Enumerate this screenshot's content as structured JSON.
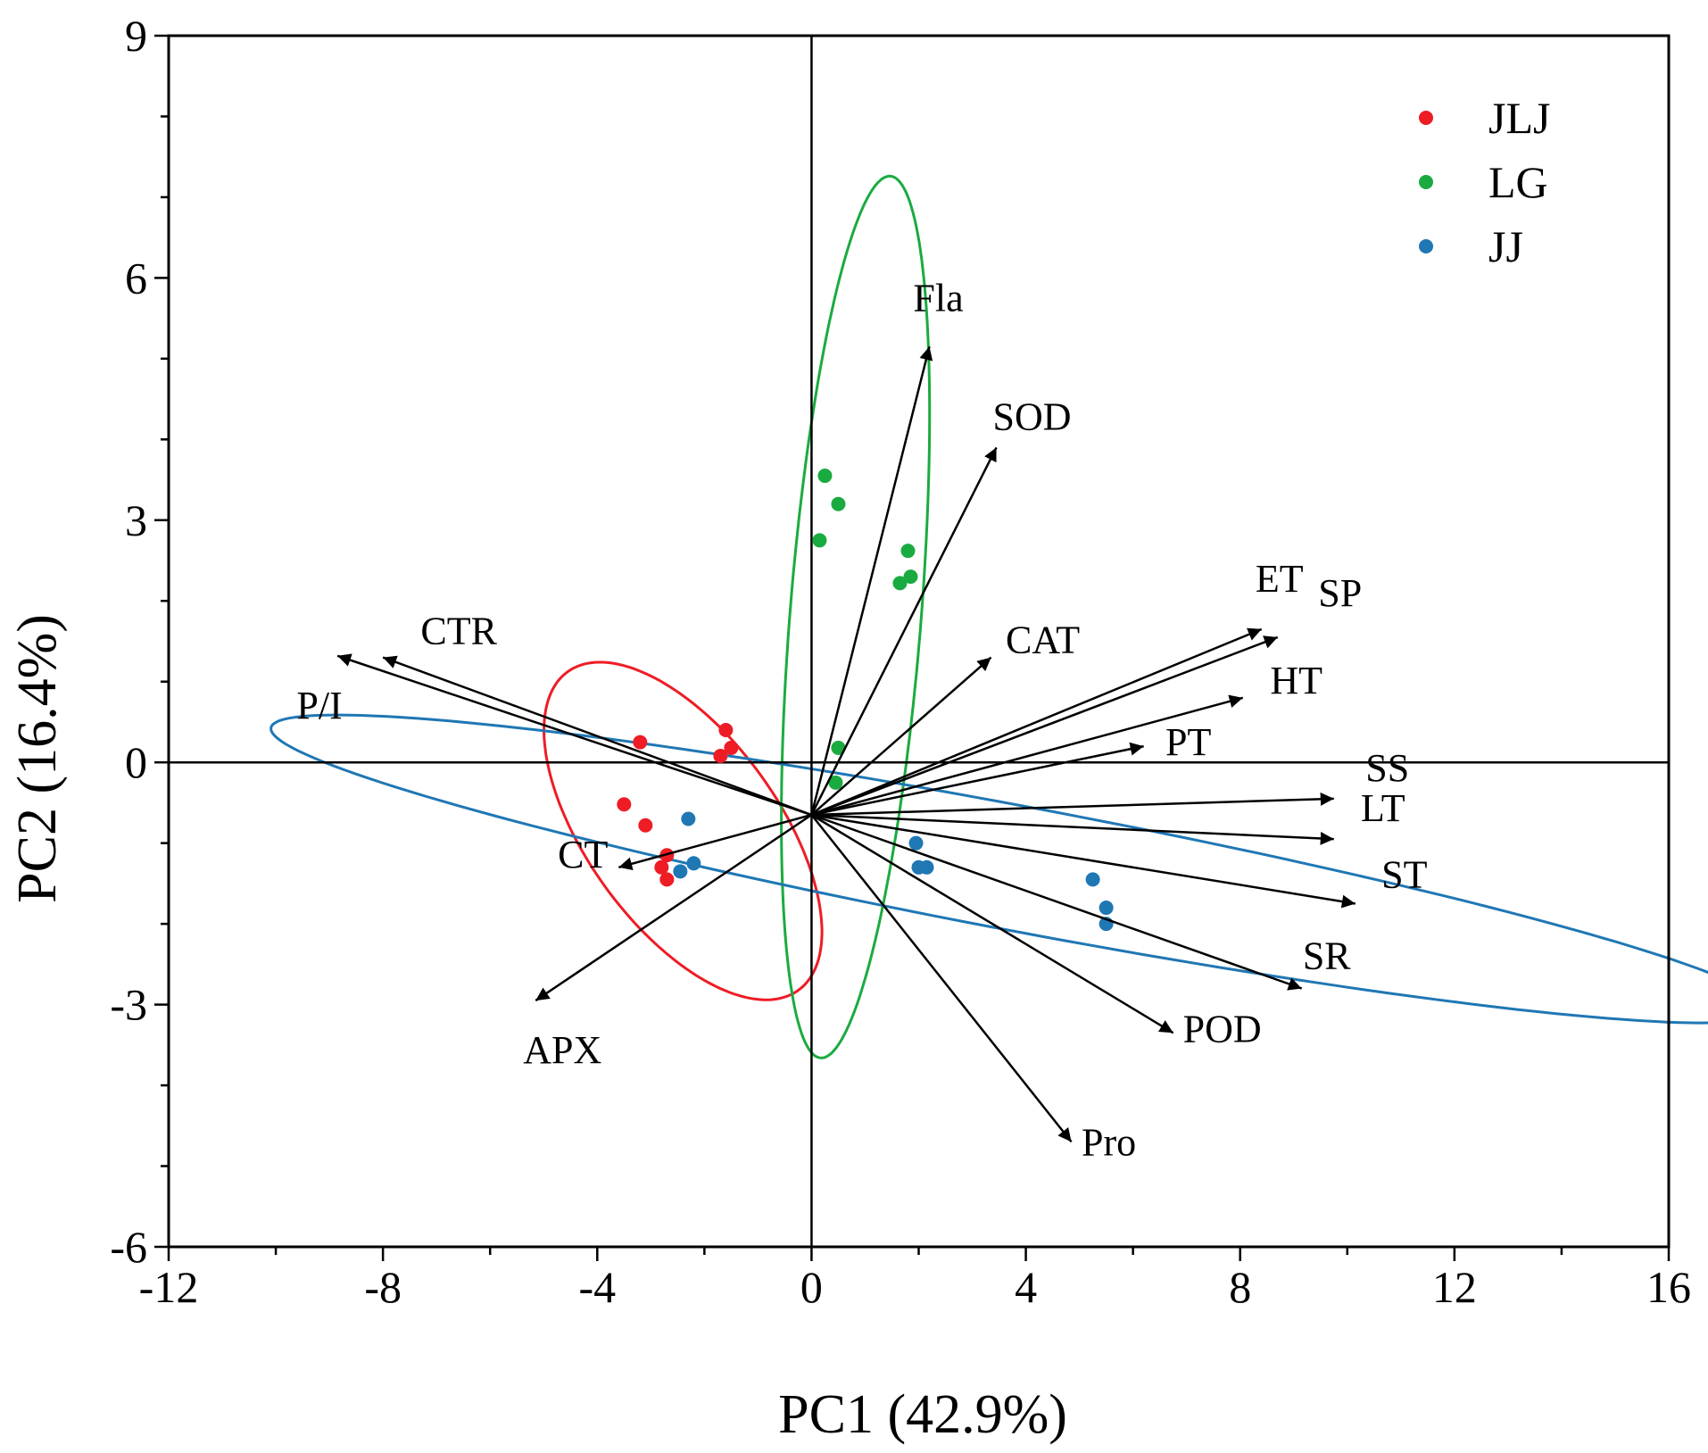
{
  "chart_data": {
    "type": "scatter",
    "title": "",
    "xlabel": "PC1 (42.9%)",
    "ylabel": "PC2 (16.4%)",
    "xlim": [
      -12,
      16
    ],
    "ylim": [
      -6,
      9
    ],
    "xticks": [
      -12,
      -8,
      -4,
      0,
      4,
      8,
      12,
      16
    ],
    "yticks": [
      -6,
      -3,
      0,
      3,
      6,
      9
    ],
    "xtick_labels": [
      "-12",
      "-8",
      "-4",
      "0",
      "4",
      "8",
      "12",
      "16"
    ],
    "ytick_labels": [
      "-6",
      "-3",
      "0",
      "3",
      "6",
      "9"
    ],
    "grid": false,
    "legend_position": "top-right",
    "series": [
      {
        "name": "JLJ",
        "color": "#ee1c25",
        "points": [
          {
            "x": -3.2,
            "y": 0.25
          },
          {
            "x": -1.6,
            "y": 0.4
          },
          {
            "x": -1.5,
            "y": 0.18
          },
          {
            "x": -1.7,
            "y": 0.08
          },
          {
            "x": -3.5,
            "y": -0.52
          },
          {
            "x": -3.1,
            "y": -0.78
          },
          {
            "x": -2.7,
            "y": -1.15
          },
          {
            "x": -2.8,
            "y": -1.3
          },
          {
            "x": -2.7,
            "y": -1.45
          }
        ]
      },
      {
        "name": "LG",
        "color": "#1aab40",
        "points": [
          {
            "x": 0.25,
            "y": 3.55
          },
          {
            "x": 0.5,
            "y": 3.2
          },
          {
            "x": 0.15,
            "y": 2.75
          },
          {
            "x": 1.8,
            "y": 2.62
          },
          {
            "x": 1.85,
            "y": 2.3
          },
          {
            "x": 1.65,
            "y": 2.22
          },
          {
            "x": 0.5,
            "y": 0.18
          },
          {
            "x": 0.45,
            "y": -0.25
          }
        ]
      },
      {
        "name": "JJ",
        "color": "#1f77b4",
        "points": [
          {
            "x": -2.3,
            "y": -0.7
          },
          {
            "x": -2.2,
            "y": -1.25
          },
          {
            "x": -2.45,
            "y": -1.35
          },
          {
            "x": 1.95,
            "y": -1.0
          },
          {
            "x": 2.0,
            "y": -1.3
          },
          {
            "x": 2.15,
            "y": -1.3
          },
          {
            "x": 5.25,
            "y": -1.45
          },
          {
            "x": 5.5,
            "y": -1.8
          },
          {
            "x": 5.5,
            "y": -2.0
          }
        ]
      }
    ],
    "ellipses": [
      {
        "name": "JLJ",
        "color": "#ee1c25",
        "cx": -2.4,
        "cy": -0.85,
        "rx": 3.0,
        "ry": 1.45,
        "angle_deg": -35
      },
      {
        "name": "LG",
        "color": "#1aab40",
        "cx": 0.82,
        "cy": 1.8,
        "rx": 5.5,
        "ry": 1.22,
        "angle_deg": 83
      },
      {
        "name": "JJ",
        "color": "#1f77b4",
        "cx": 3.9,
        "cy": -1.32,
        "rx": 14.1,
        "ry": 0.78,
        "angle_deg": -7.1
      }
    ],
    "loadings_origin": [
      0,
      -0.65
    ],
    "loadings": [
      {
        "name": "Fla",
        "x": 2.2,
        "y": 5.15,
        "label": "Fla"
      },
      {
        "name": "SOD",
        "x": 3.45,
        "y": 3.9,
        "label": "SOD"
      },
      {
        "name": "CAT",
        "x": 3.35,
        "y": 1.3,
        "label": "CAT"
      },
      {
        "name": "ET",
        "x": 8.4,
        "y": 1.65,
        "label": "ET"
      },
      {
        "name": "SP",
        "x": 8.7,
        "y": 1.55,
        "label": "SP"
      },
      {
        "name": "HT",
        "x": 8.05,
        "y": 0.8,
        "label": "HT"
      },
      {
        "name": "PT",
        "x": 6.2,
        "y": 0.2,
        "label": "PT"
      },
      {
        "name": "SS",
        "x": 9.75,
        "y": -0.45,
        "label": "SS"
      },
      {
        "name": "LT",
        "x": 9.75,
        "y": -0.95,
        "label": "LT"
      },
      {
        "name": "ST",
        "x": 10.15,
        "y": -1.75,
        "label": "ST"
      },
      {
        "name": "SR",
        "x": 9.15,
        "y": -2.8,
        "label": "SR"
      },
      {
        "name": "POD",
        "x": 6.75,
        "y": -3.35,
        "label": "POD"
      },
      {
        "name": "Pro",
        "x": 4.85,
        "y": -4.7,
        "label": "Pro"
      },
      {
        "name": "APX",
        "x": -5.15,
        "y": -2.95,
        "label": "APX"
      },
      {
        "name": "CT",
        "x": -3.6,
        "y": -1.3,
        "label": "CT"
      },
      {
        "name": "CTR",
        "x": -8.0,
        "y": 1.3,
        "label": "CTR"
      },
      {
        "name": "P/I",
        "x": -8.85,
        "y": 1.32,
        "label": "P/I"
      }
    ]
  }
}
